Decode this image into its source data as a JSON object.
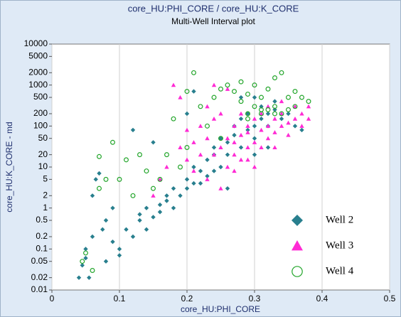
{
  "chart_data": {
    "type": "scatter",
    "title": "core_HU:PHI_CORE / core_HU:K_CORE",
    "subtitle": "Multi-Well Interval plot",
    "x_label": "core_HU:PHI_CORE",
    "y_label": "core_HU:K_CORE - md",
    "xlim": [
      0,
      0.5
    ],
    "xticks": [
      0,
      0.1,
      0.2,
      0.3,
      0.4,
      0.5
    ],
    "ylim": [
      0.01,
      10000
    ],
    "yticks": [
      0.01,
      0.02,
      0.05,
      0.1,
      0.2,
      0.5,
      1,
      2,
      5,
      10,
      20,
      50,
      100,
      200,
      500,
      1000,
      2000,
      5000,
      10000
    ],
    "y_scale": "log",
    "grid": "x",
    "legend": "lower right",
    "series": [
      {
        "name": "Well 2",
        "color": "#287f8e",
        "marker": "diamond",
        "x": [
          0.04,
          0.045,
          0.05,
          0.05,
          0.055,
          0.06,
          0.06,
          0.065,
          0.07,
          0.075,
          0.08,
          0.08,
          0.09,
          0.09,
          0.1,
          0.1,
          0.11,
          0.12,
          0.12,
          0.13,
          0.13,
          0.14,
          0.14,
          0.15,
          0.15,
          0.16,
          0.16,
          0.17,
          0.17,
          0.18,
          0.18,
          0.19,
          0.2,
          0.2,
          0.21,
          0.21,
          0.22,
          0.22,
          0.23,
          0.23,
          0.24,
          0.24,
          0.25,
          0.25,
          0.26,
          0.26,
          0.27,
          0.27,
          0.28,
          0.28,
          0.29,
          0.29,
          0.3,
          0.3,
          0.3,
          0.31,
          0.31,
          0.32,
          0.32,
          0.33,
          0.33,
          0.34,
          0.35,
          0.36,
          0.37,
          0.2,
          0.21,
          0.28,
          0.3,
          0.32,
          0.24,
          0.26
        ],
        "y": [
          0.02,
          0.04,
          0.06,
          0.1,
          0.02,
          0.2,
          2,
          5,
          7,
          0.3,
          0.5,
          0.05,
          0.15,
          1,
          0.1,
          0.07,
          0.3,
          0.2,
          80,
          0.5,
          0.7,
          0.3,
          1,
          0.6,
          40,
          1.2,
          0.8,
          2,
          1.5,
          3,
          1,
          2,
          5,
          3,
          4,
          10,
          8,
          4,
          15,
          6,
          20,
          30,
          10,
          50,
          40,
          20,
          100,
          60,
          30,
          150,
          80,
          200,
          100,
          50,
          500,
          300,
          150,
          200,
          100,
          400,
          250,
          150,
          200,
          100,
          80,
          200,
          700,
          500,
          20,
          30,
          8,
          3
        ]
      },
      {
        "name": "Well 3",
        "color": "#ff2ad4",
        "marker": "triangle",
        "x": [
          0.15,
          0.16,
          0.17,
          0.18,
          0.19,
          0.19,
          0.2,
          0.2,
          0.21,
          0.21,
          0.22,
          0.22,
          0.23,
          0.23,
          0.23,
          0.24,
          0.24,
          0.25,
          0.25,
          0.25,
          0.26,
          0.26,
          0.26,
          0.27,
          0.27,
          0.27,
          0.28,
          0.28,
          0.28,
          0.29,
          0.29,
          0.29,
          0.3,
          0.3,
          0.3,
          0.31,
          0.31,
          0.31,
          0.32,
          0.32,
          0.32,
          0.33,
          0.33,
          0.33,
          0.34,
          0.34,
          0.35,
          0.35,
          0.36,
          0.36,
          0.37,
          0.37,
          0.38,
          0.38,
          0.34,
          0.24,
          0.27,
          0.29
        ],
        "y": [
          2,
          5,
          10,
          1000,
          500,
          30,
          80,
          15,
          40,
          8,
          100,
          20,
          300,
          50,
          5,
          20,
          150,
          30,
          200,
          3,
          50,
          10,
          800,
          20,
          100,
          40,
          60,
          15,
          200,
          30,
          100,
          70,
          40,
          150,
          10,
          80,
          200,
          30,
          100,
          50,
          300,
          150,
          70,
          30,
          200,
          100,
          120,
          60,
          300,
          150,
          200,
          100,
          300,
          150,
          400,
          1000,
          8,
          15
        ]
      },
      {
        "name": "Well 4",
        "color": "#22a52a",
        "marker": "circle",
        "x": [
          0.045,
          0.05,
          0.06,
          0.07,
          0.07,
          0.08,
          0.09,
          0.1,
          0.11,
          0.12,
          0.13,
          0.14,
          0.15,
          0.16,
          0.17,
          0.18,
          0.19,
          0.2,
          0.2,
          0.21,
          0.22,
          0.23,
          0.24,
          0.25,
          0.25,
          0.26,
          0.27,
          0.28,
          0.28,
          0.29,
          0.29,
          0.3,
          0.3,
          0.31,
          0.31,
          0.32,
          0.32,
          0.33,
          0.33,
          0.34,
          0.34,
          0.35,
          0.35,
          0.36,
          0.36,
          0.37,
          0.38,
          0.29,
          0.31,
          0.33
        ],
        "y": [
          0.05,
          0.08,
          0.03,
          18,
          3,
          5,
          40,
          5,
          15,
          2,
          20,
          8,
          3,
          5,
          20,
          150,
          10,
          30,
          700,
          2000,
          300,
          100,
          500,
          50,
          800,
          1000,
          700,
          400,
          1200,
          200,
          600,
          300,
          1000,
          200,
          500,
          250,
          800,
          1500,
          300,
          2000,
          200,
          500,
          250,
          700,
          300,
          500,
          400,
          150,
          250,
          200
        ]
      }
    ]
  }
}
